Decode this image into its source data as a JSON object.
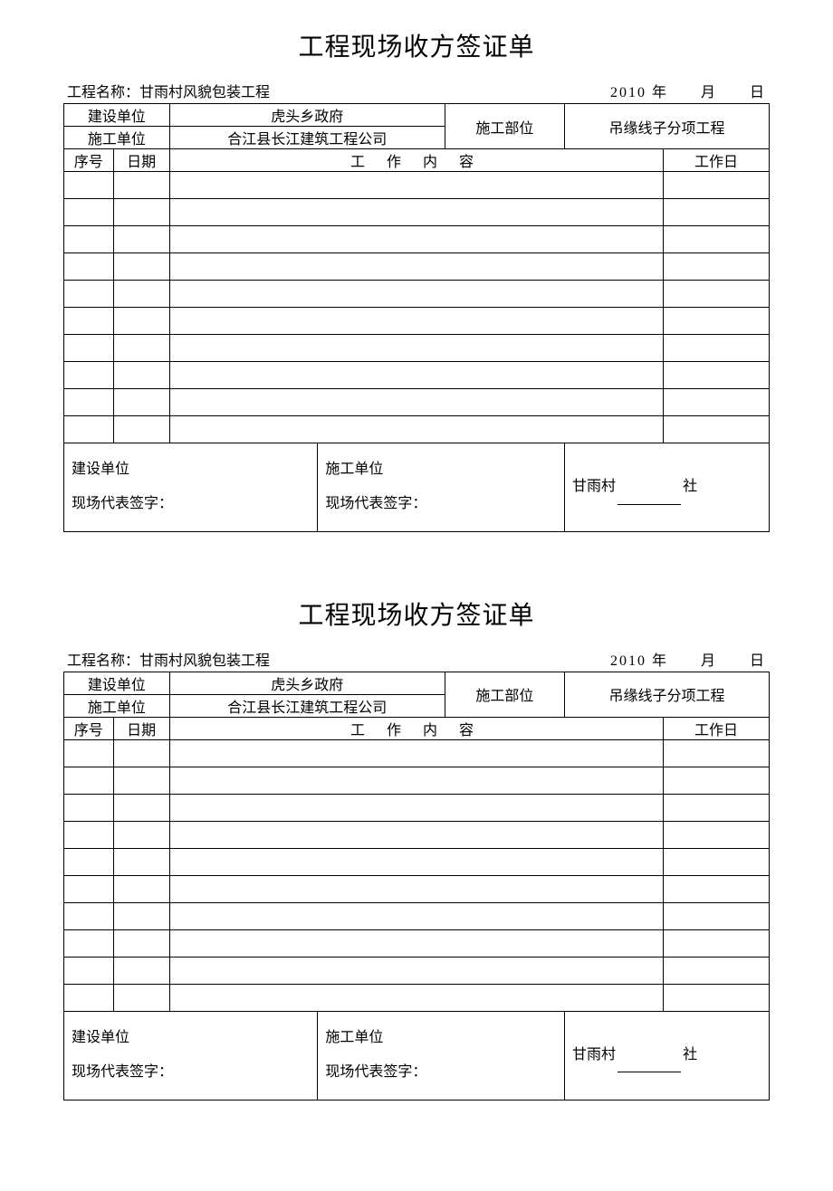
{
  "forms": [
    {
      "title": "工程现场收方签证单",
      "meta": {
        "project_label": "工程名称：",
        "project_name": "甘雨村风貌包装工程",
        "date_text": "2010 年　　月　　日"
      },
      "header": {
        "build_unit_label": "建设单位",
        "build_unit_value": "虎头乡政府",
        "const_unit_label": "施工单位",
        "const_unit_value": "合江县长江建筑工程公司",
        "part_label": "施工部位",
        "part_value": "吊缘线子分项工程",
        "seq_label": "序号",
        "date_label": "日期",
        "work_label": "工 作 内 容",
        "workday_label": "工作日"
      },
      "data_row_count": 10,
      "signatures": {
        "left_line1": "建设单位",
        "left_line2": "现场代表签字：",
        "mid_line1": "施工单位",
        "mid_line2": "现场代表签字：",
        "right_prefix": "甘雨村",
        "right_suffix": "社"
      }
    },
    {
      "title": "工程现场收方签证单",
      "meta": {
        "project_label": "工程名称：",
        "project_name": "甘雨村风貌包装工程",
        "date_text": "2010 年　　月　　日"
      },
      "header": {
        "build_unit_label": "建设单位",
        "build_unit_value": "虎头乡政府",
        "const_unit_label": "施工单位",
        "const_unit_value": "合江县长江建筑工程公司",
        "part_label": "施工部位",
        "part_value": "吊缘线子分项工程",
        "seq_label": "序号",
        "date_label": "日期",
        "work_label": "工 作 内 容",
        "workday_label": "工作日"
      },
      "data_row_count": 10,
      "signatures": {
        "left_line1": "建设单位",
        "left_line2": "现场代表签字：",
        "mid_line1": "施工单位",
        "mid_line2": "现场代表签字：",
        "right_prefix": "甘雨村",
        "right_suffix": "社"
      }
    }
  ],
  "layout": {
    "col_widths_pct": [
      7,
      8,
      21,
      18,
      17,
      14,
      15
    ]
  }
}
